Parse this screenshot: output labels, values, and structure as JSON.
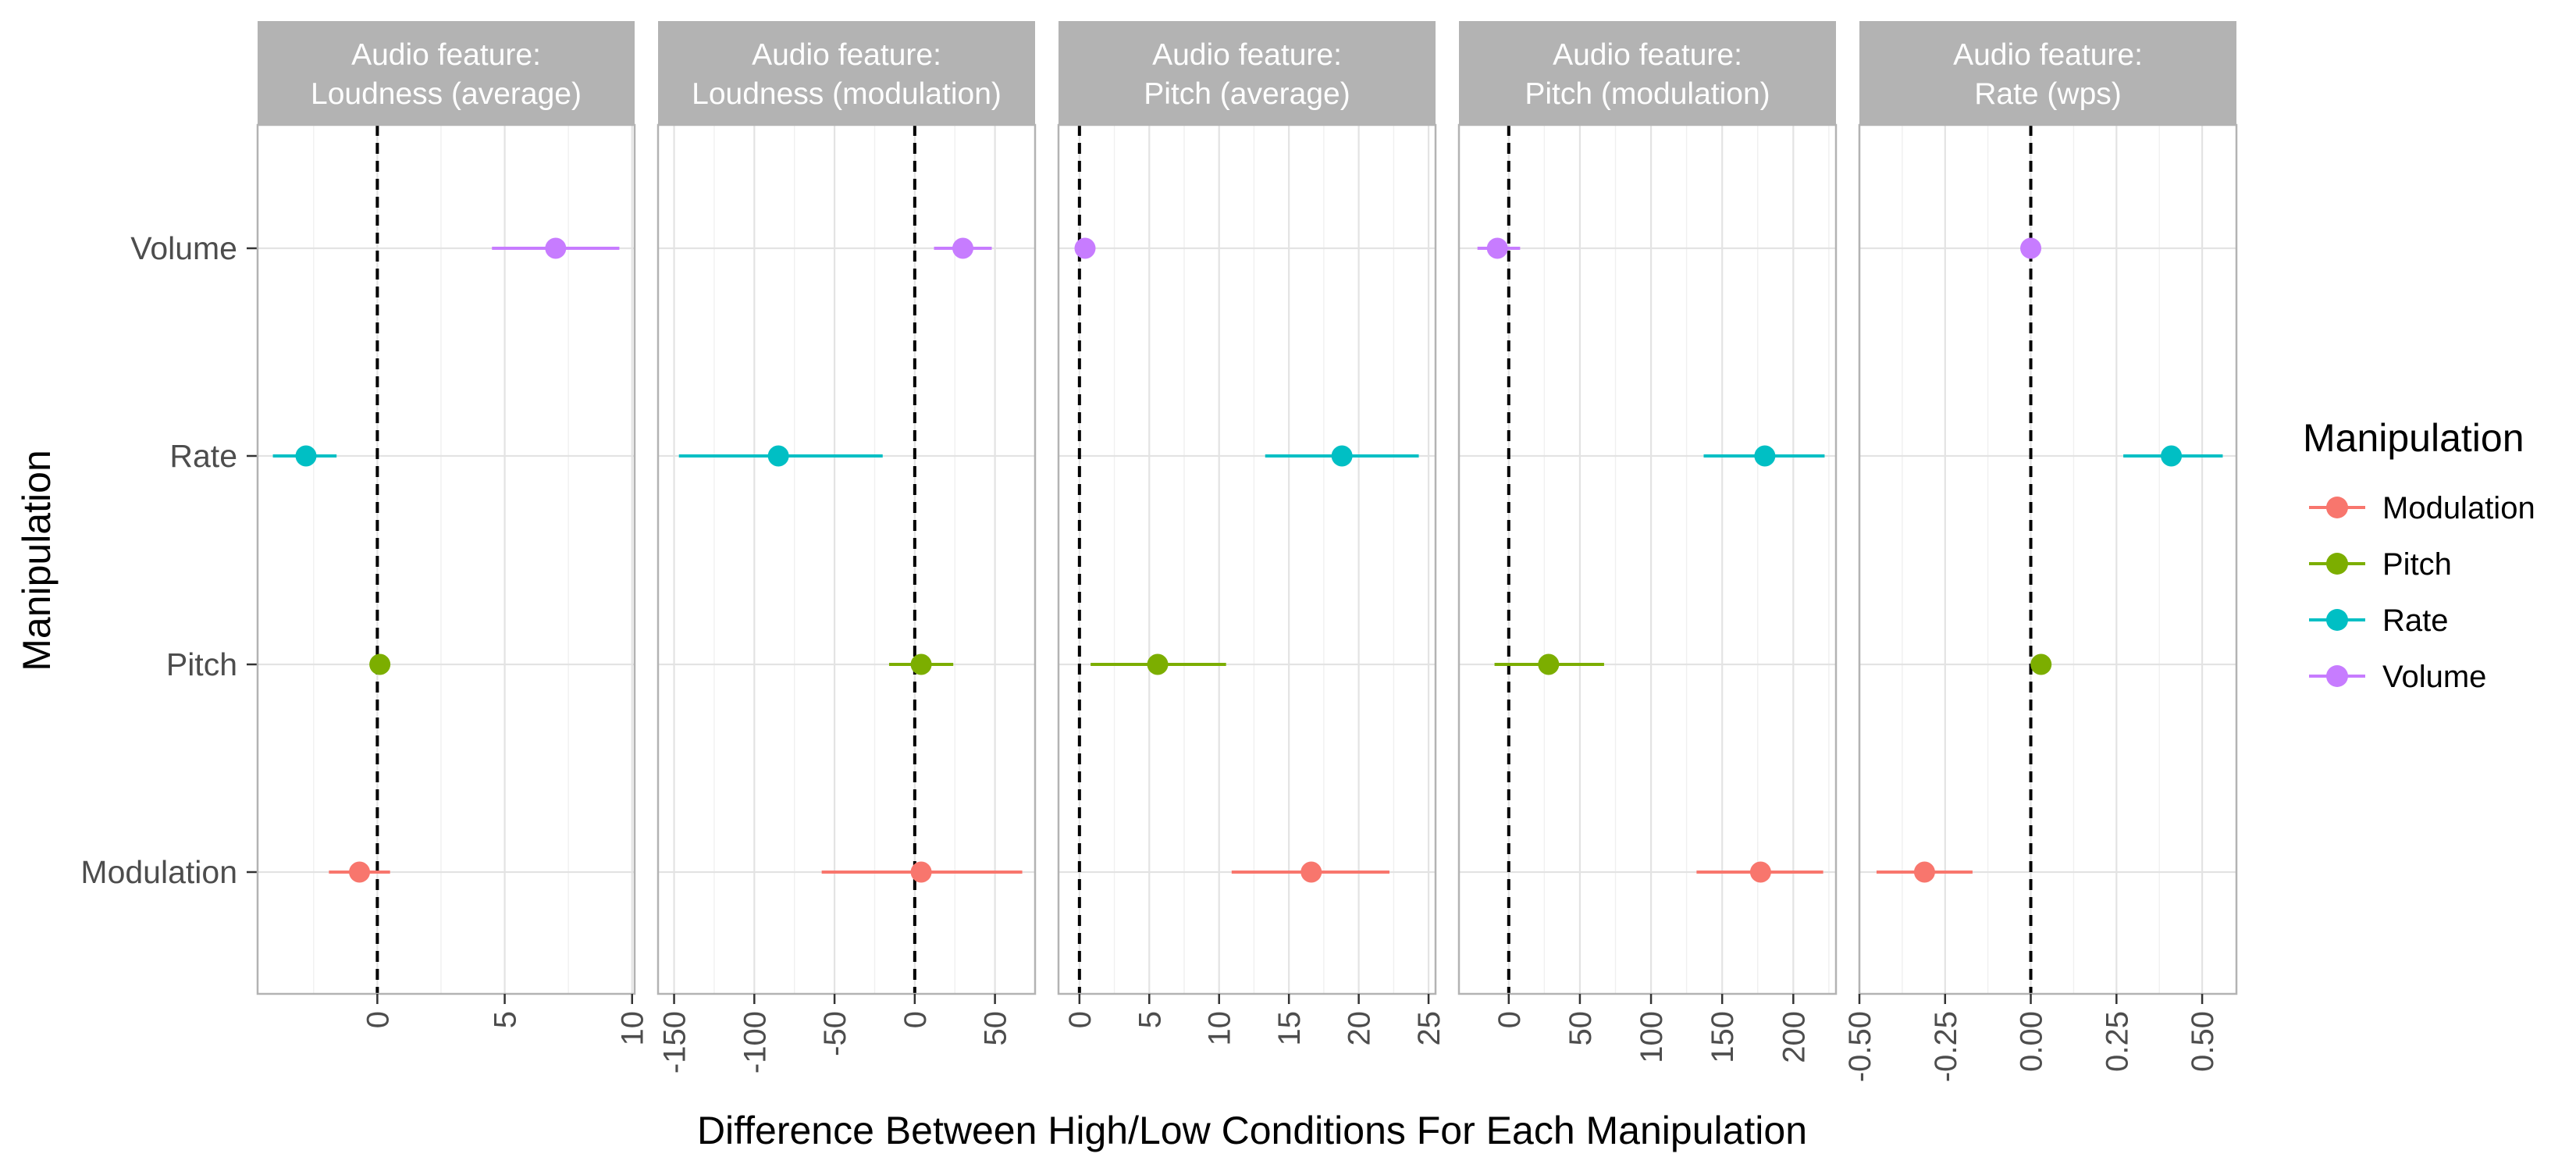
{
  "chart_data": {
    "type": "dot-range",
    "xlabel": "Difference Between High/Low Conditions For Each Manipulation",
    "ylabel": "Manipulation",
    "categories": [
      "Volume",
      "Rate",
      "Pitch",
      "Modulation"
    ],
    "grid": true,
    "legend": {
      "title": "Manipulation",
      "position": "right",
      "entries": [
        {
          "name": "Modulation",
          "color": "#F8766D"
        },
        {
          "name": "Pitch",
          "color": "#7CAE00"
        },
        {
          "name": "Rate",
          "color": "#00BFC4"
        },
        {
          "name": "Volume",
          "color": "#C77CFF"
        }
      ]
    },
    "reference_line": 0,
    "panels": [
      {
        "strip": [
          "Audio feature:",
          "Loudness (average)"
        ],
        "xlim": [
          -4.7,
          10.1
        ],
        "ticks": [
          0,
          5,
          10
        ],
        "minor_ticks": [
          -2.5,
          2.5,
          7.5
        ],
        "points": [
          {
            "manipulation": "Volume",
            "estimate": 7.0,
            "low": 4.5,
            "high": 9.5
          },
          {
            "manipulation": "Rate",
            "estimate": -2.8,
            "low": -4.1,
            "high": -1.6
          },
          {
            "manipulation": "Pitch",
            "estimate": 0.1,
            "low": 0.0,
            "high": 0.2
          },
          {
            "manipulation": "Modulation",
            "estimate": -0.7,
            "low": -1.9,
            "high": 0.5
          }
        ]
      },
      {
        "strip": [
          "Audio feature:",
          "Loudness (modulation)"
        ],
        "xlim": [
          -160,
          75
        ],
        "ticks": [
          -150,
          -100,
          -50,
          0,
          50
        ],
        "minor_ticks": [
          -125,
          -75,
          -25,
          25
        ],
        "points": [
          {
            "manipulation": "Volume",
            "estimate": 30,
            "low": 12,
            "high": 48
          },
          {
            "manipulation": "Rate",
            "estimate": -85,
            "low": -147,
            "high": -20
          },
          {
            "manipulation": "Pitch",
            "estimate": 4,
            "low": -16,
            "high": 24
          },
          {
            "manipulation": "Modulation",
            "estimate": 4,
            "low": -58,
            "high": 67
          }
        ]
      },
      {
        "strip": [
          "Audio feature:",
          "Pitch (average)"
        ],
        "xlim": [
          -1.5,
          25.5
        ],
        "ticks": [
          0,
          5,
          10,
          15,
          20,
          25
        ],
        "minor_ticks": [
          2.5,
          7.5,
          12.5,
          17.5,
          22.5
        ],
        "points": [
          {
            "manipulation": "Volume",
            "estimate": 0.4,
            "low": 0.1,
            "high": 0.7
          },
          {
            "manipulation": "Rate",
            "estimate": 18.8,
            "low": 13.3,
            "high": 24.3
          },
          {
            "manipulation": "Pitch",
            "estimate": 5.6,
            "low": 0.8,
            "high": 10.5
          },
          {
            "manipulation": "Modulation",
            "estimate": 16.6,
            "low": 10.9,
            "high": 22.2
          }
        ]
      },
      {
        "strip": [
          "Audio feature:",
          "Pitch (modulation)"
        ],
        "xlim": [
          -35,
          230
        ],
        "ticks": [
          0,
          50,
          100,
          150,
          200
        ],
        "minor_ticks": [
          25,
          75,
          125,
          175,
          225
        ],
        "points": [
          {
            "manipulation": "Volume",
            "estimate": -8,
            "low": -22,
            "high": 8
          },
          {
            "manipulation": "Rate",
            "estimate": 180,
            "low": 137,
            "high": 222
          },
          {
            "manipulation": "Pitch",
            "estimate": 28,
            "low": -10,
            "high": 67
          },
          {
            "manipulation": "Modulation",
            "estimate": 177,
            "low": 132,
            "high": 221
          }
        ]
      },
      {
        "strip": [
          "Audio feature:",
          "Rate (wps)"
        ],
        "xlim": [
          -0.5,
          0.6
        ],
        "ticks": [
          -0.5,
          -0.25,
          0.0,
          0.25,
          0.5
        ],
        "tick_labels": [
          "-0.50",
          "-0.25",
          "0.00",
          "0.25",
          "0.50"
        ],
        "minor_ticks": [
          -0.375,
          -0.125,
          0.125,
          0.375
        ],
        "points": [
          {
            "manipulation": "Volume",
            "estimate": 0.0,
            "low": -0.01,
            "high": 0.01
          },
          {
            "manipulation": "Rate",
            "estimate": 0.41,
            "low": 0.27,
            "high": 0.56
          },
          {
            "manipulation": "Pitch",
            "estimate": 0.03,
            "low": 0.01,
            "high": 0.04
          },
          {
            "manipulation": "Modulation",
            "estimate": -0.31,
            "low": -0.45,
            "high": -0.17
          }
        ]
      }
    ]
  }
}
